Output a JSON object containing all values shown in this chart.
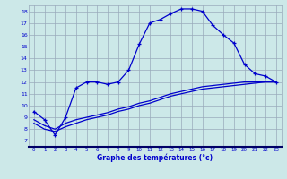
{
  "xlabel": "Graphe des températures (°c)",
  "bg_color": "#cce8e8",
  "line_color": "#0000cc",
  "grid_color": "#99aabb",
  "xlim": [
    -0.5,
    23.5
  ],
  "ylim": [
    6.5,
    18.5
  ],
  "xticks": [
    0,
    1,
    2,
    3,
    4,
    5,
    6,
    7,
    8,
    9,
    10,
    11,
    12,
    13,
    14,
    15,
    16,
    17,
    18,
    19,
    20,
    21,
    22,
    23
  ],
  "yticks": [
    7,
    8,
    9,
    10,
    11,
    12,
    13,
    14,
    15,
    16,
    17,
    18
  ],
  "curve1_x": [
    0,
    1,
    2,
    3,
    4,
    5,
    6,
    7,
    8,
    9,
    10,
    11,
    12,
    13,
    14,
    15,
    16,
    17,
    18,
    19,
    20,
    21,
    22,
    23
  ],
  "curve1_y": [
    9.5,
    8.8,
    7.5,
    9.0,
    11.5,
    12.0,
    12.0,
    11.8,
    12.0,
    13.0,
    15.2,
    17.0,
    17.3,
    17.8,
    18.2,
    18.2,
    18.0,
    16.8,
    16.0,
    15.3,
    13.5,
    12.7,
    12.5,
    12.0
  ],
  "curve2_x": [
    0,
    1,
    2,
    3,
    4,
    5,
    6,
    7,
    8,
    9,
    10,
    11,
    12,
    13,
    14,
    15,
    16,
    17,
    18,
    19,
    20,
    21,
    22,
    23
  ],
  "curve2_y": [
    8.5,
    8.0,
    7.8,
    8.2,
    8.5,
    8.8,
    9.0,
    9.2,
    9.5,
    9.7,
    10.0,
    10.2,
    10.5,
    10.8,
    11.0,
    11.2,
    11.4,
    11.5,
    11.6,
    11.7,
    11.8,
    11.9,
    12.0,
    12.0
  ],
  "curve3_x": [
    0,
    1,
    2,
    3,
    4,
    5,
    6,
    7,
    8,
    9,
    10,
    11,
    12,
    13,
    14,
    15,
    16,
    17,
    18,
    19,
    20,
    21,
    22,
    23
  ],
  "curve3_y": [
    8.8,
    8.3,
    8.0,
    8.5,
    8.8,
    9.0,
    9.2,
    9.4,
    9.7,
    9.9,
    10.2,
    10.4,
    10.7,
    11.0,
    11.2,
    11.4,
    11.6,
    11.7,
    11.8,
    11.9,
    12.0,
    12.0,
    12.0,
    12.0
  ]
}
